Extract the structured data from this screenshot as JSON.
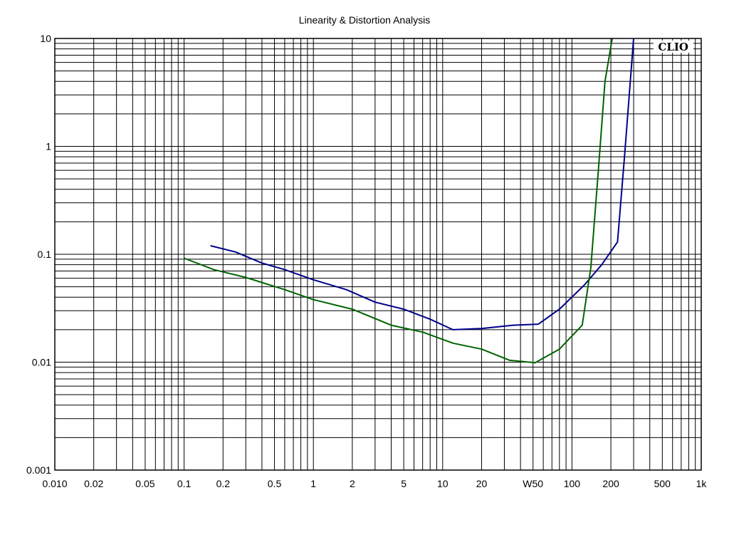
{
  "chart_data": {
    "type": "line",
    "title": "Linearity & Distortion Analysis",
    "brand": "CLIO",
    "xscale": "log",
    "yscale": "log",
    "xlim": [
      0.01,
      1000
    ],
    "ylim": [
      0.001,
      10
    ],
    "grid": true,
    "x_ticks": [
      {
        "value": 0.01,
        "label": "0.010"
      },
      {
        "value": 0.02,
        "label": "0.02"
      },
      {
        "value": 0.05,
        "label": "0.05"
      },
      {
        "value": 0.1,
        "label": "0.1"
      },
      {
        "value": 0.2,
        "label": "0.2"
      },
      {
        "value": 0.5,
        "label": "0.5"
      },
      {
        "value": 1,
        "label": "1"
      },
      {
        "value": 2,
        "label": "2"
      },
      {
        "value": 5,
        "label": "5"
      },
      {
        "value": 10,
        "label": "10"
      },
      {
        "value": 20,
        "label": "20"
      },
      {
        "value": 50,
        "label": "W50"
      },
      {
        "value": 100,
        "label": "100"
      },
      {
        "value": 200,
        "label": "200"
      },
      {
        "value": 500,
        "label": "500"
      },
      {
        "value": 1000,
        "label": "1k"
      }
    ],
    "y_ticks": [
      {
        "value": 10,
        "label": "10"
      },
      {
        "value": 1,
        "label": "1"
      },
      {
        "value": 0.1,
        "label": "0.1"
      },
      {
        "value": 0.01,
        "label": "0.01"
      },
      {
        "value": 0.001,
        "label": "0.001"
      }
    ],
    "series": [
      {
        "color": "#00008b",
        "points": [
          [
            0.16,
            0.12
          ],
          [
            0.25,
            0.105
          ],
          [
            0.4,
            0.083
          ],
          [
            0.6,
            0.072
          ],
          [
            1.0,
            0.058
          ],
          [
            1.8,
            0.047
          ],
          [
            3.0,
            0.036
          ],
          [
            5.0,
            0.031
          ],
          [
            8.0,
            0.025
          ],
          [
            12.0,
            0.02
          ],
          [
            20.0,
            0.0205
          ],
          [
            35.0,
            0.022
          ],
          [
            55.0,
            0.0225
          ],
          [
            80.0,
            0.031
          ],
          [
            125.0,
            0.052
          ],
          [
            170.0,
            0.08
          ],
          [
            225.0,
            0.13
          ],
          [
            255.0,
            0.8
          ],
          [
            300.0,
            10.0
          ]
        ]
      },
      {
        "color": "#006400",
        "points": [
          [
            0.1,
            0.092
          ],
          [
            0.17,
            0.072
          ],
          [
            0.3,
            0.061
          ],
          [
            0.6,
            0.047
          ],
          [
            1.0,
            0.038
          ],
          [
            2.0,
            0.031
          ],
          [
            4.0,
            0.022
          ],
          [
            7.0,
            0.019
          ],
          [
            12.0,
            0.015
          ],
          [
            20.0,
            0.0132
          ],
          [
            33.0,
            0.0104
          ],
          [
            52.0,
            0.0099
          ],
          [
            80.0,
            0.0132
          ],
          [
            120.0,
            0.022
          ],
          [
            140.0,
            0.075
          ],
          [
            160.0,
            0.6
          ],
          [
            180.0,
            4.0
          ],
          [
            205.0,
            10.0
          ]
        ]
      }
    ]
  }
}
